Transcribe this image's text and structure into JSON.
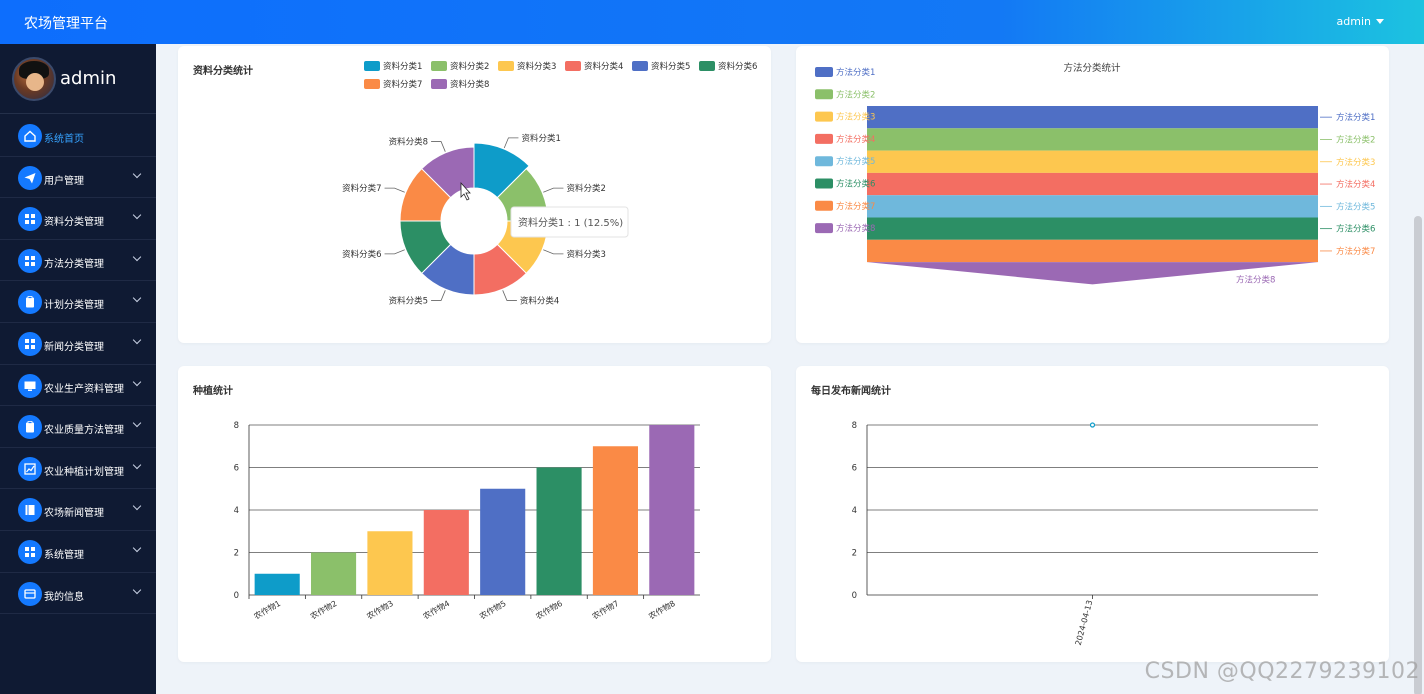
{
  "app": {
    "title": "农场管理平台",
    "user": "admin"
  },
  "sidebar": {
    "username": "admin",
    "items": [
      {
        "label": "系统首页",
        "icon": "home-icon",
        "expandable": false,
        "active": true
      },
      {
        "label": "用户管理",
        "icon": "send-icon",
        "expandable": true
      },
      {
        "label": "资料分类管理",
        "icon": "grid-icon",
        "expandable": true
      },
      {
        "label": "方法分类管理",
        "icon": "grid-icon",
        "expandable": true
      },
      {
        "label": "计划分类管理",
        "icon": "clipboard-icon",
        "expandable": true
      },
      {
        "label": "新闻分类管理",
        "icon": "grid-icon",
        "expandable": true
      },
      {
        "label": "农业生产资料管理",
        "icon": "monitor-icon",
        "expandable": true
      },
      {
        "label": "农业质量方法管理",
        "icon": "clipboard-icon",
        "expandable": true
      },
      {
        "label": "农业种植计划管理",
        "icon": "chart-icon",
        "expandable": true
      },
      {
        "label": "农场新闻管理",
        "icon": "book-icon",
        "expandable": true
      },
      {
        "label": "系统管理",
        "icon": "grid-icon",
        "expandable": true
      },
      {
        "label": "我的信息",
        "icon": "card-icon",
        "expandable": true
      }
    ]
  },
  "chart_data": [
    {
      "type": "pie",
      "title": "资料分类统计",
      "categories": [
        "资料分类1",
        "资料分类2",
        "资料分类3",
        "资料分类4",
        "资料分类5",
        "资料分类6",
        "资料分类7",
        "资料分类8"
      ],
      "values": [
        1,
        1,
        1,
        1,
        1,
        1,
        1,
        1
      ],
      "colors": [
        "#0e9cc9",
        "#8bc06a",
        "#fdc74f",
        "#f36e62",
        "#4f6fc5",
        "#2c8f65",
        "#fa8a46",
        "#9b69b4"
      ],
      "tooltip": "资料分类1 : 1 (12.5%)",
      "legend": "top-right"
    },
    {
      "type": "funnel",
      "title": "方法分类统计",
      "categories": [
        "方法分类1",
        "方法分类2",
        "方法分类3",
        "方法分类4",
        "方法分类5",
        "方法分类6",
        "方法分类7",
        "方法分类8"
      ],
      "values": [
        1,
        1,
        1,
        1,
        1,
        1,
        1,
        1
      ],
      "colors": [
        "#4f6fc5",
        "#8bc06a",
        "#fdc74f",
        "#f36e62",
        "#6fb8dc",
        "#2c8f65",
        "#fa8a46",
        "#9b69b4"
      ],
      "legend": "left"
    },
    {
      "type": "bar",
      "title": "种植统计",
      "categories": [
        "农作物1",
        "农作物2",
        "农作物3",
        "农作物4",
        "农作物5",
        "农作物6",
        "农作物7",
        "农作物8"
      ],
      "values": [
        1,
        2,
        3,
        4,
        5,
        6,
        7,
        8
      ],
      "colors": [
        "#0e9cc9",
        "#8bc06a",
        "#fdc74f",
        "#f36e62",
        "#4f6fc5",
        "#2c8f65",
        "#fa8a46",
        "#9b69b4"
      ],
      "ylim": [
        0,
        8
      ],
      "yticks": [
        0,
        2,
        4,
        6,
        8
      ]
    },
    {
      "type": "line",
      "title": "每日发布新闻统计",
      "categories": [
        "2024-04-13"
      ],
      "values": [
        8
      ],
      "color": "#0e9cc9",
      "ylim": [
        0,
        8
      ],
      "yticks": [
        0,
        2,
        4,
        6,
        8
      ]
    }
  ],
  "watermark": "CSDN @QQ2279239102"
}
